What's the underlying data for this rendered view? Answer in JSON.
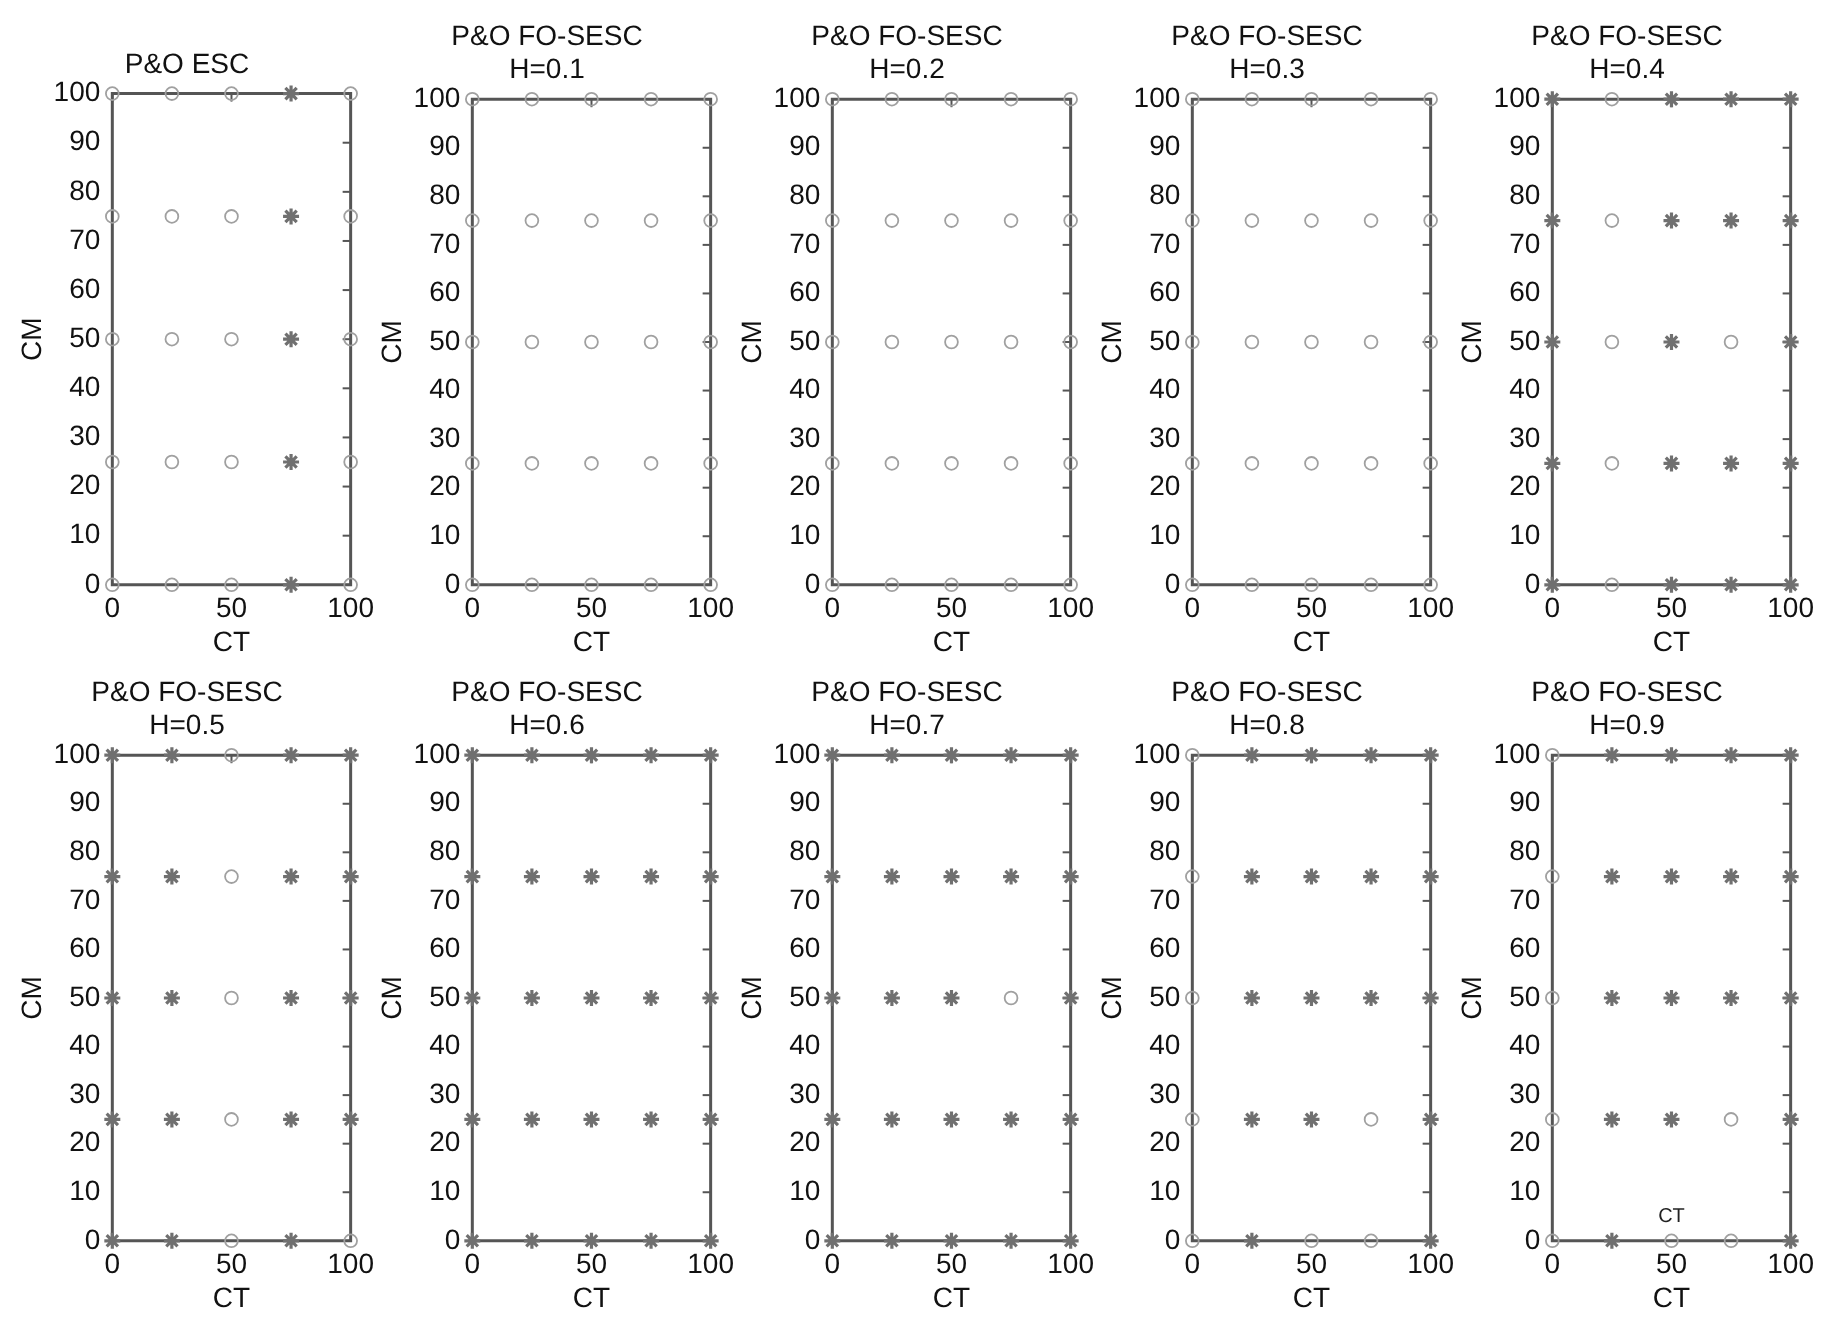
{
  "chart_data": [
    {
      "type": "scatter",
      "title": "P&O ESC",
      "xlabel": "CT",
      "ylabel": "CM",
      "xlim": [
        0,
        100
      ],
      "xticks": [
        0,
        50,
        100
      ],
      "ylim": [
        0,
        100
      ],
      "yticks": [
        0,
        10,
        20,
        30,
        40,
        50,
        60,
        70,
        80,
        90,
        100
      ],
      "grid": false,
      "legend": false,
      "series": [
        {
          "color": "#a0a0a0",
          "marker": "circle",
          "x": [
            0,
            0,
            0,
            0,
            0,
            25,
            25,
            25,
            25,
            25,
            50,
            50,
            50,
            50,
            50,
            100,
            100,
            100,
            100,
            100
          ],
          "values": [
            0,
            25,
            50,
            75,
            100,
            0,
            25,
            50,
            75,
            100,
            0,
            25,
            50,
            75,
            100,
            0,
            25,
            50,
            75,
            100
          ]
        },
        {
          "color": "#707070",
          "marker": "cross",
          "x": [
            75,
            75,
            75,
            75,
            75
          ],
          "values": [
            0,
            25,
            50,
            75,
            100
          ]
        }
      ]
    },
    {
      "type": "scatter",
      "title": "P&O FO-SESC",
      "subtitle": "H=0.1",
      "xlabel": "CT",
      "ylabel": "CM",
      "xlim": [
        0,
        100
      ],
      "xticks": [
        0,
        50,
        100
      ],
      "ylim": [
        0,
        100
      ],
      "yticks": [
        0,
        10,
        20,
        30,
        40,
        50,
        60,
        70,
        80,
        90,
        100
      ],
      "grid": false,
      "legend": false,
      "series": [
        {
          "color": "#a0a0a0",
          "marker": "circle",
          "x": [
            0,
            0,
            0,
            0,
            0,
            25,
            25,
            25,
            25,
            25,
            50,
            50,
            50,
            50,
            50,
            75,
            75,
            75,
            75,
            75,
            100,
            100,
            100,
            100,
            100
          ],
          "values": [
            0,
            25,
            50,
            75,
            100,
            0,
            25,
            50,
            75,
            100,
            0,
            25,
            50,
            75,
            100,
            0,
            25,
            50,
            75,
            100,
            0,
            25,
            50,
            75,
            100
          ]
        }
      ]
    },
    {
      "type": "scatter",
      "title": "P&O FO-SESC",
      "subtitle": "H=0.2",
      "xlabel": "CT",
      "ylabel": "CM",
      "xlim": [
        0,
        100
      ],
      "xticks": [
        0,
        50,
        100
      ],
      "ylim": [
        0,
        100
      ],
      "yticks": [
        0,
        10,
        20,
        30,
        40,
        50,
        60,
        70,
        80,
        90,
        100
      ],
      "grid": false,
      "legend": false,
      "series": [
        {
          "color": "#a0a0a0",
          "marker": "circle",
          "x": [
            0,
            0,
            0,
            0,
            0,
            25,
            25,
            25,
            25,
            25,
            50,
            50,
            50,
            50,
            50,
            75,
            75,
            75,
            75,
            75,
            100,
            100,
            100,
            100,
            100
          ],
          "values": [
            0,
            25,
            50,
            75,
            100,
            0,
            25,
            50,
            75,
            100,
            0,
            25,
            50,
            75,
            100,
            0,
            25,
            50,
            75,
            100,
            0,
            25,
            50,
            75,
            100
          ]
        }
      ]
    },
    {
      "type": "scatter",
      "title": "P&O FO-SESC",
      "subtitle": "H=0.3",
      "xlabel": "CT",
      "ylabel": "CM",
      "xlim": [
        0,
        100
      ],
      "xticks": [
        0,
        50,
        100
      ],
      "ylim": [
        0,
        100
      ],
      "yticks": [
        0,
        10,
        20,
        30,
        40,
        50,
        60,
        70,
        80,
        90,
        100
      ],
      "grid": false,
      "legend": false,
      "series": [
        {
          "color": "#a0a0a0",
          "marker": "circle",
          "x": [
            0,
            0,
            0,
            0,
            0,
            25,
            25,
            25,
            25,
            25,
            50,
            50,
            50,
            50,
            50,
            75,
            75,
            75,
            75,
            75,
            100,
            100,
            100,
            100,
            100
          ],
          "values": [
            0,
            25,
            50,
            75,
            100,
            0,
            25,
            50,
            75,
            100,
            0,
            25,
            50,
            75,
            100,
            0,
            25,
            50,
            75,
            100,
            0,
            25,
            50,
            75,
            100
          ]
        }
      ]
    },
    {
      "type": "scatter",
      "title": "P&O FO-SESC",
      "subtitle": "H=0.4",
      "xlabel": "CT",
      "ylabel": "CM",
      "xlim": [
        0,
        100
      ],
      "xticks": [
        0,
        50,
        100
      ],
      "ylim": [
        0,
        100
      ],
      "yticks": [
        0,
        10,
        20,
        30,
        40,
        50,
        60,
        70,
        80,
        90,
        100
      ],
      "grid": false,
      "legend": false,
      "series": [
        {
          "color": "#a0a0a0",
          "marker": "circle",
          "x": [
            25,
            25,
            25,
            25,
            25,
            75
          ],
          "values": [
            0,
            25,
            50,
            75,
            100,
            50
          ]
        },
        {
          "color": "#707070",
          "marker": "cross",
          "x": [
            0,
            0,
            0,
            0,
            0,
            50,
            50,
            50,
            50,
            50,
            75,
            75,
            75,
            75,
            100,
            100,
            100,
            100,
            100
          ],
          "values": [
            0,
            25,
            50,
            75,
            100,
            0,
            25,
            50,
            75,
            100,
            0,
            25,
            75,
            100,
            0,
            25,
            50,
            75,
            100
          ]
        }
      ]
    },
    {
      "type": "scatter",
      "title": "P&O FO-SESC",
      "subtitle": "H=0.5",
      "xlabel": "CT",
      "ylabel": "CM",
      "xlim": [
        0,
        100
      ],
      "xticks": [
        0,
        50,
        100
      ],
      "ylim": [
        0,
        100
      ],
      "yticks": [
        0,
        10,
        20,
        30,
        40,
        50,
        60,
        70,
        80,
        90,
        100
      ],
      "grid": false,
      "legend": false,
      "series": [
        {
          "color": "#a0a0a0",
          "marker": "circle",
          "x": [
            50,
            50,
            50,
            50,
            50,
            100
          ],
          "values": [
            0,
            25,
            50,
            75,
            100,
            0
          ]
        },
        {
          "color": "#707070",
          "marker": "cross",
          "x": [
            0,
            0,
            0,
            0,
            0,
            25,
            25,
            25,
            25,
            25,
            75,
            75,
            75,
            75,
            75,
            100,
            100,
            100,
            100
          ],
          "values": [
            0,
            25,
            50,
            75,
            100,
            0,
            25,
            50,
            75,
            100,
            0,
            25,
            50,
            75,
            100,
            25,
            50,
            75,
            100
          ]
        }
      ]
    },
    {
      "type": "scatter",
      "title": "P&O FO-SESC",
      "subtitle": "H=0.6",
      "xlabel": "CT",
      "ylabel": "CM",
      "xlim": [
        0,
        100
      ],
      "xticks": [
        0,
        50,
        100
      ],
      "ylim": [
        0,
        100
      ],
      "yticks": [
        0,
        10,
        20,
        30,
        40,
        50,
        60,
        70,
        80,
        90,
        100
      ],
      "grid": false,
      "legend": false,
      "series": [
        {
          "color": "#707070",
          "marker": "cross",
          "x": [
            0,
            0,
            0,
            0,
            0,
            25,
            25,
            25,
            25,
            25,
            50,
            50,
            50,
            50,
            50,
            75,
            75,
            75,
            75,
            75,
            100,
            100,
            100,
            100,
            100
          ],
          "values": [
            0,
            25,
            50,
            75,
            100,
            0,
            25,
            50,
            75,
            100,
            0,
            25,
            50,
            75,
            100,
            0,
            25,
            50,
            75,
            100,
            0,
            25,
            50,
            75,
            100
          ]
        }
      ]
    },
    {
      "type": "scatter",
      "title": "P&O FO-SESC",
      "subtitle": "H=0.7",
      "xlabel": "CT",
      "ylabel": "CM",
      "xlim": [
        0,
        100
      ],
      "xticks": [
        0,
        50,
        100
      ],
      "ylim": [
        0,
        100
      ],
      "yticks": [
        0,
        10,
        20,
        30,
        40,
        50,
        60,
        70,
        80,
        90,
        100
      ],
      "grid": false,
      "legend": false,
      "series": [
        {
          "color": "#a0a0a0",
          "marker": "circle",
          "x": [
            75
          ],
          "values": [
            50
          ]
        },
        {
          "color": "#707070",
          "marker": "cross",
          "x": [
            0,
            0,
            0,
            0,
            0,
            25,
            25,
            25,
            25,
            25,
            50,
            50,
            50,
            50,
            50,
            75,
            75,
            75,
            75,
            100,
            100,
            100,
            100,
            100
          ],
          "values": [
            0,
            25,
            50,
            75,
            100,
            0,
            25,
            50,
            75,
            100,
            0,
            25,
            50,
            75,
            100,
            0,
            25,
            75,
            100,
            0,
            25,
            50,
            75,
            100
          ]
        }
      ]
    },
    {
      "type": "scatter",
      "title": "P&O FO-SESC",
      "subtitle": "H=0.8",
      "xlabel": "CT",
      "ylabel": "CM",
      "xlim": [
        0,
        100
      ],
      "xticks": [
        0,
        50,
        100
      ],
      "ylim": [
        0,
        100
      ],
      "yticks": [
        0,
        10,
        20,
        30,
        40,
        50,
        60,
        70,
        80,
        90,
        100
      ],
      "grid": false,
      "legend": false,
      "series": [
        {
          "color": "#a0a0a0",
          "marker": "circle",
          "x": [
            0,
            0,
            0,
            0,
            0,
            50,
            75,
            75
          ],
          "values": [
            0,
            25,
            50,
            75,
            100,
            0,
            0,
            25
          ]
        },
        {
          "color": "#707070",
          "marker": "cross",
          "x": [
            25,
            25,
            25,
            25,
            25,
            50,
            50,
            50,
            50,
            75,
            75,
            75,
            100,
            100,
            100,
            100,
            100
          ],
          "values": [
            0,
            25,
            50,
            75,
            100,
            25,
            50,
            75,
            100,
            50,
            75,
            100,
            0,
            25,
            50,
            75,
            100
          ]
        }
      ]
    },
    {
      "type": "scatter",
      "title": "P&O FO-SESC",
      "subtitle": "H=0.9",
      "xlabel": "CT",
      "ylabel": "CM",
      "xlim": [
        0,
        100
      ],
      "xticks": [
        0,
        50,
        100
      ],
      "ylim": [
        0,
        100
      ],
      "yticks": [
        0,
        10,
        20,
        30,
        40,
        50,
        60,
        70,
        80,
        90,
        100
      ],
      "grid": false,
      "legend": false,
      "annotations": [
        {
          "text": "CT",
          "x": 50,
          "y": 3
        }
      ],
      "series": [
        {
          "color": "#a0a0a0",
          "marker": "circle",
          "x": [
            0,
            0,
            0,
            0,
            0,
            50,
            75,
            75
          ],
          "values": [
            0,
            25,
            50,
            75,
            100,
            0,
            0,
            25
          ]
        },
        {
          "color": "#707070",
          "marker": "cross",
          "x": [
            25,
            25,
            25,
            25,
            25,
            50,
            50,
            50,
            50,
            75,
            75,
            75,
            100,
            100,
            100,
            100,
            100
          ],
          "values": [
            0,
            25,
            50,
            75,
            100,
            25,
            50,
            75,
            100,
            50,
            75,
            100,
            0,
            25,
            50,
            75,
            100
          ]
        }
      ]
    }
  ]
}
